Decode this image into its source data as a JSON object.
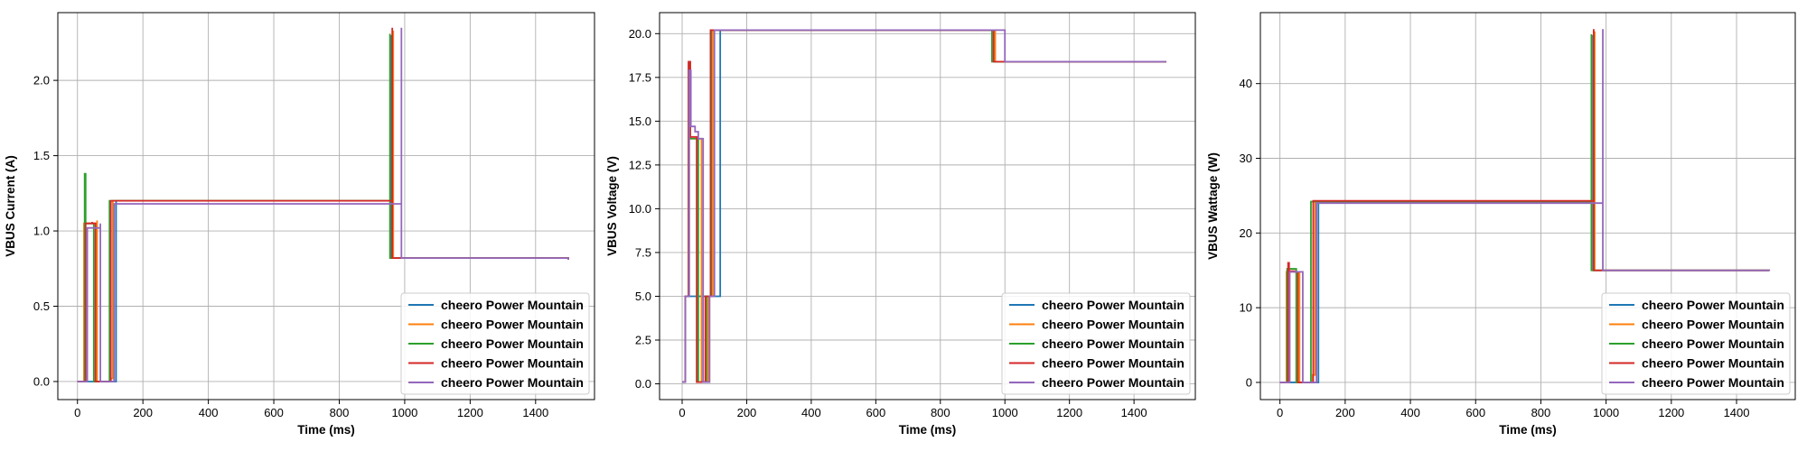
{
  "chart_data": [
    {
      "type": "line",
      "title": "",
      "xlabel": "Time (ms)",
      "ylabel": "VBUS Current (A)",
      "xlim": [
        -60,
        1580
      ],
      "ylim": [
        -0.12,
        2.45
      ],
      "xticks": [
        0,
        200,
        400,
        600,
        800,
        1000,
        1200,
        1400
      ],
      "yticks": [
        0.0,
        0.5,
        1.0,
        1.5,
        2.0
      ],
      "ytick_labels": [
        "0.0",
        "0.5",
        "1.0",
        "1.5",
        "2.0"
      ],
      "grid": true,
      "legend_position": "lower-right",
      "series": [
        {
          "name": "cheero Power Mountain",
          "color": "#1f77b4",
          "x": [
            0,
            118,
            118,
            960,
            960,
            1500
          ],
          "y": [
            0.0,
            0.0,
            1.2,
            2.3,
            0.82,
            0.81
          ],
          "step": true
        },
        {
          "name": "cheero Power Mountain",
          "color": "#ff7f0e",
          "x": [
            0,
            20,
            20,
            60,
            60,
            100,
            100,
            108,
            108,
            965,
            965,
            1500
          ],
          "y": [
            0.0,
            0.0,
            1.05,
            1.07,
            0.0,
            0.0,
            0.02,
            0.02,
            1.2,
            2.33,
            0.82,
            0.81
          ],
          "step": true
        },
        {
          "name": "cheero Power Mountain",
          "color": "#2ca02c",
          "x": [
            0,
            22,
            22,
            25,
            25,
            50,
            50,
            58,
            58,
            98,
            98,
            955,
            955,
            1500
          ],
          "y": [
            0.0,
            0.0,
            1.38,
            1.38,
            1.05,
            1.05,
            0.0,
            0.0,
            0.0,
            0.0,
            1.2,
            2.31,
            0.82,
            0.81
          ],
          "step": true
        },
        {
          "name": "cheero Power Mountain",
          "color": "#d62728",
          "x": [
            0,
            25,
            25,
            45,
            45,
            55,
            55,
            102,
            102,
            962,
            962,
            1500
          ],
          "y": [
            0.0,
            0.0,
            1.05,
            1.06,
            1.05,
            1.05,
            0.0,
            0.0,
            1.2,
            2.35,
            0.82,
            0.81
          ],
          "step": true
        },
        {
          "name": "cheero Power Mountain",
          "color": "#9467bd",
          "x": [
            0,
            30,
            30,
            70,
            70,
            112,
            112,
            990,
            990,
            1500
          ],
          "y": [
            0.0,
            0.0,
            1.02,
            1.05,
            0.0,
            0.0,
            1.18,
            2.35,
            0.82,
            0.81
          ],
          "step": true
        }
      ]
    },
    {
      "type": "line",
      "title": "",
      "xlabel": "Time (ms)",
      "ylabel": "VBUS Voltage (V)",
      "xlim": [
        -70,
        1590
      ],
      "ylim": [
        -0.9,
        21.2
      ],
      "xticks": [
        0,
        200,
        400,
        600,
        800,
        1000,
        1200,
        1400
      ],
      "yticks": [
        0.0,
        2.5,
        5.0,
        7.5,
        10.0,
        12.5,
        15.0,
        17.5,
        20.0
      ],
      "ytick_labels": [
        "0.0",
        "2.5",
        "5.0",
        "7.5",
        "10.0",
        "12.5",
        "15.0",
        "17.5",
        "20.0"
      ],
      "grid": true,
      "legend_position": "lower-right",
      "series": [
        {
          "name": "cheero Power Mountain",
          "color": "#1f77b4",
          "x": [
            0,
            10,
            10,
            105,
            105,
            118,
            118,
            965,
            965,
            1500
          ],
          "y": [
            0.1,
            0.1,
            5.0,
            5.0,
            5.0,
            5.0,
            20.2,
            20.2,
            18.4,
            18.4
          ],
          "step": true
        },
        {
          "name": "cheero Power Mountain",
          "color": "#ff7f0e",
          "x": [
            0,
            10,
            10,
            20,
            20,
            25,
            25,
            60,
            60,
            80,
            80,
            95,
            95,
            110,
            110,
            970,
            970,
            1500
          ],
          "y": [
            0.1,
            0.1,
            5.0,
            5.0,
            18.3,
            18.3,
            14.0,
            14.0,
            0.1,
            0.1,
            5.0,
            5.0,
            20.2,
            20.2,
            20.2,
            20.2,
            18.4,
            18.4
          ],
          "step": true
        },
        {
          "name": "cheero Power Mountain",
          "color": "#2ca02c",
          "x": [
            0,
            10,
            10,
            20,
            20,
            25,
            25,
            50,
            50,
            75,
            75,
            90,
            90,
            960,
            960,
            1500
          ],
          "y": [
            0.1,
            0.1,
            5.0,
            5.0,
            18.4,
            18.4,
            14.0,
            14.0,
            0.1,
            0.1,
            5.0,
            5.0,
            20.2,
            20.2,
            18.4,
            18.4
          ],
          "step": true
        },
        {
          "name": "cheero Power Mountain",
          "color": "#d62728",
          "x": [
            0,
            10,
            10,
            20,
            20,
            25,
            25,
            45,
            45,
            72,
            72,
            88,
            88,
            965,
            965,
            1500
          ],
          "y": [
            0.1,
            0.1,
            5.0,
            5.0,
            18.4,
            18.4,
            14.1,
            14.1,
            0.1,
            0.1,
            5.0,
            5.0,
            20.2,
            20.2,
            18.4,
            18.4
          ],
          "step": true
        },
        {
          "name": "cheero Power Mountain",
          "color": "#9467bd",
          "x": [
            0,
            10,
            10,
            22,
            22,
            27,
            27,
            40,
            40,
            50,
            50,
            65,
            65,
            85,
            85,
            100,
            100,
            112,
            112,
            1000,
            1000,
            1500
          ],
          "y": [
            0.1,
            0.1,
            5.0,
            5.0,
            17.9,
            17.9,
            14.7,
            14.7,
            14.4,
            14.4,
            14.0,
            14.0,
            0.1,
            0.1,
            5.0,
            5.0,
            20.2,
            20.2,
            20.2,
            20.2,
            18.4,
            18.4
          ],
          "step": true
        }
      ]
    },
    {
      "type": "line",
      "title": "",
      "xlabel": "Time (ms)",
      "ylabel": "VBUS Wattage (W)",
      "xlim": [
        -60,
        1580
      ],
      "ylim": [
        -2.3,
        49.5
      ],
      "xticks": [
        0,
        200,
        400,
        600,
        800,
        1000,
        1200,
        1400
      ],
      "yticks": [
        0,
        10,
        20,
        30,
        40
      ],
      "ytick_labels": [
        "0",
        "10",
        "20",
        "30",
        "40"
      ],
      "grid": true,
      "legend_position": "lower-right",
      "series": [
        {
          "name": "cheero Power Mountain",
          "color": "#1f77b4",
          "x": [
            0,
            118,
            118,
            960,
            960,
            1500
          ],
          "y": [
            0.0,
            0.0,
            24.2,
            46.5,
            15.0,
            14.9
          ],
          "step": true
        },
        {
          "name": "cheero Power Mountain",
          "color": "#ff7f0e",
          "x": [
            0,
            20,
            20,
            60,
            60,
            100,
            100,
            108,
            108,
            965,
            965,
            1500
          ],
          "y": [
            0.0,
            0.0,
            14.8,
            14.8,
            0.0,
            0.0,
            1.0,
            1.0,
            24.2,
            47.0,
            15.0,
            14.9
          ],
          "step": true
        },
        {
          "name": "cheero Power Mountain",
          "color": "#2ca02c",
          "x": [
            0,
            22,
            22,
            50,
            50,
            95,
            95,
            955,
            955,
            1500
          ],
          "y": [
            0.0,
            0.0,
            15.2,
            15.0,
            0.0,
            0.0,
            24.2,
            46.6,
            15.0,
            14.9
          ],
          "step": true
        },
        {
          "name": "cheero Power Mountain",
          "color": "#d62728",
          "x": [
            0,
            25,
            25,
            28,
            28,
            45,
            45,
            55,
            55,
            102,
            102,
            962,
            962,
            1500
          ],
          "y": [
            0.0,
            0.0,
            16.0,
            16.0,
            14.9,
            14.9,
            14.8,
            14.8,
            0.0,
            0.0,
            24.3,
            47.3,
            15.0,
            14.9
          ],
          "step": true
        },
        {
          "name": "cheero Power Mountain",
          "color": "#9467bd",
          "x": [
            0,
            30,
            30,
            70,
            70,
            112,
            112,
            990,
            990,
            1500
          ],
          "y": [
            0.0,
            0.0,
            14.8,
            14.8,
            0.0,
            0.0,
            24.0,
            47.3,
            15.0,
            14.9
          ],
          "step": true
        }
      ]
    }
  ]
}
